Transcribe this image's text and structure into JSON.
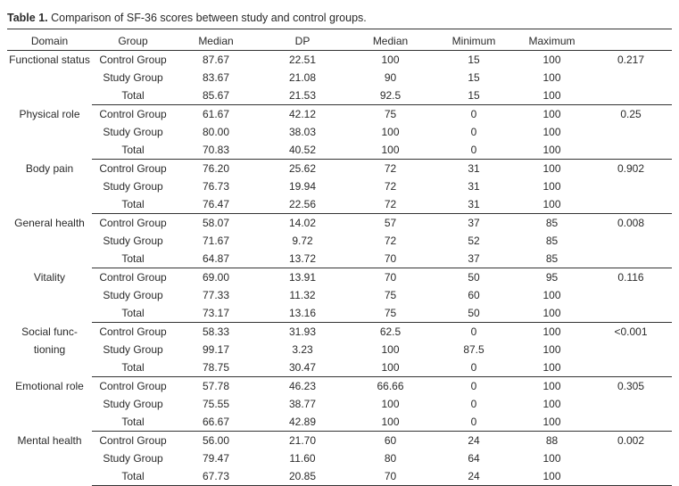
{
  "caption": {
    "label": "Table 1.",
    "text": " Comparison of SF-36 scores between study and control groups."
  },
  "columns": [
    "Domain",
    "Group",
    "Median",
    "DP",
    "Median",
    "Minimum",
    "Maximum",
    ""
  ],
  "groups": [
    {
      "domain": "Functional status",
      "p": "0.217",
      "rows": [
        {
          "group": "Control Group",
          "median": "87.67",
          "dp": "22.51",
          "median2": "100",
          "min": "15",
          "max": "100"
        },
        {
          "group": "Study Group",
          "median": "83.67",
          "dp": "21.08",
          "median2": "90",
          "min": "15",
          "max": "100"
        },
        {
          "group": "Total",
          "median": "85.67",
          "dp": "21.53",
          "median2": "92.5",
          "min": "15",
          "max": "100"
        }
      ]
    },
    {
      "domain": "Physical role",
      "p": "0.25",
      "rows": [
        {
          "group": "Control Group",
          "median": "61.67",
          "dp": "42.12",
          "median2": "75",
          "min": "0",
          "max": "100"
        },
        {
          "group": "Study Group",
          "median": "80.00",
          "dp": "38.03",
          "median2": "100",
          "min": "0",
          "max": "100"
        },
        {
          "group": "Total",
          "median": "70.83",
          "dp": "40.52",
          "median2": "100",
          "min": "0",
          "max": "100"
        }
      ]
    },
    {
      "domain": "Body pain",
      "p": "0.902",
      "rows": [
        {
          "group": "Control Group",
          "median": "76.20",
          "dp": "25.62",
          "median2": "72",
          "min": "31",
          "max": "100"
        },
        {
          "group": "Study Group",
          "median": "76.73",
          "dp": "19.94",
          "median2": "72",
          "min": "31",
          "max": "100"
        },
        {
          "group": "Total",
          "median": "76.47",
          "dp": "22.56",
          "median2": "72",
          "min": "31",
          "max": "100"
        }
      ]
    },
    {
      "domain": "General health",
      "p": "0.008",
      "rows": [
        {
          "group": "Control Group",
          "median": "58.07",
          "dp": "14.02",
          "median2": "57",
          "min": "37",
          "max": "85"
        },
        {
          "group": "Study Group",
          "median": "71.67",
          "dp": "9.72",
          "median2": "72",
          "min": "52",
          "max": "85"
        },
        {
          "group": "Total",
          "median": "64.87",
          "dp": "13.72",
          "median2": "70",
          "min": "37",
          "max": "85"
        }
      ]
    },
    {
      "domain": "Vitality",
      "p": "0.116",
      "rows": [
        {
          "group": "Control Group",
          "median": "69.00",
          "dp": "13.91",
          "median2": "70",
          "min": "50",
          "max": "95"
        },
        {
          "group": "Study Group",
          "median": "77.33",
          "dp": "11.32",
          "median2": "75",
          "min": "60",
          "max": "100"
        },
        {
          "group": "Total",
          "median": "73.17",
          "dp": "13.16",
          "median2": "75",
          "min": "50",
          "max": "100"
        }
      ]
    },
    {
      "domain": "Social func-tioning",
      "p": "<0.001",
      "rows": [
        {
          "group": "Control Group",
          "median": "58.33",
          "dp": "31.93",
          "median2": "62.5",
          "min": "0",
          "max": "100"
        },
        {
          "group": "Study Group",
          "median": "99.17",
          "dp": "3.23",
          "median2": "100",
          "min": "87.5",
          "max": "100"
        },
        {
          "group": "Total",
          "median": "78.75",
          "dp": "30.47",
          "median2": "100",
          "min": "0",
          "max": "100"
        }
      ]
    },
    {
      "domain": "Emotional role",
      "p": "0.305",
      "rows": [
        {
          "group": "Control Group",
          "median": "57.78",
          "dp": "46.23",
          "median2": "66.66",
          "min": "0",
          "max": "100"
        },
        {
          "group": "Study Group",
          "median": "75.55",
          "dp": "38.77",
          "median2": "100",
          "min": "0",
          "max": "100"
        },
        {
          "group": "Total",
          "median": "66.67",
          "dp": "42.89",
          "median2": "100",
          "min": "0",
          "max": "100"
        }
      ]
    },
    {
      "domain": "Mental health",
      "p": "0.002",
      "rows": [
        {
          "group": "Control Group",
          "median": "56.00",
          "dp": "21.70",
          "median2": "60",
          "min": "24",
          "max": "88"
        },
        {
          "group": "Study Group",
          "median": "79.47",
          "dp": "11.60",
          "median2": "80",
          "min": "64",
          "max": "100"
        },
        {
          "group": "Total",
          "median": "67.73",
          "dp": "20.85",
          "median2": "70",
          "min": "24",
          "max": "100"
        }
      ]
    }
  ]
}
